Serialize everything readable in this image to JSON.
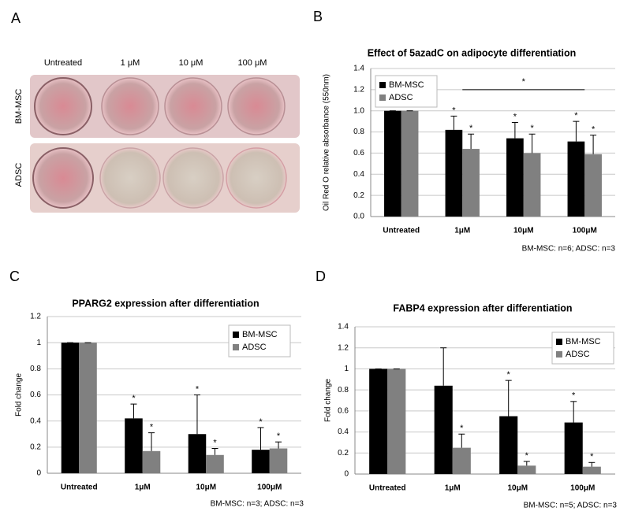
{
  "image_panel": {
    "panel_label": "A",
    "columns": [
      "Untreated",
      "1 μM",
      "10 μM",
      "100 μM"
    ],
    "rows": [
      "BM-MSC",
      "ADSC"
    ]
  },
  "chart_data": [
    {
      "type": "bar",
      "panel_label": "B",
      "title": "Effect of 5azadC on adipocyte differentiation",
      "y_label": "Oil Red O relative absorbance (550nm)",
      "categories": [
        "Untreated",
        "1μM",
        "10μM",
        "100μM"
      ],
      "series": [
        {
          "name": "BM-MSC",
          "color": "#000000",
          "values": [
            1,
            0.82,
            0.74,
            0.71
          ],
          "errors": [
            0,
            0.13,
            0.15,
            0.19
          ],
          "significance": [
            null,
            "*",
            "*",
            "*"
          ]
        },
        {
          "name": "ADSC",
          "color": "#808080",
          "values": [
            1,
            0.64,
            0.6,
            0.59
          ],
          "errors": [
            0,
            0.14,
            0.18,
            0.18
          ],
          "significance": [
            null,
            "*",
            "*",
            "*"
          ]
        }
      ],
      "annotations": [
        {
          "text": "*",
          "from": "1μM",
          "to": "100μM",
          "y": 1.2
        }
      ],
      "ylim": [
        0,
        1.4
      ],
      "yticks": [
        {
          "value": 0,
          "label": "0.0"
        },
        {
          "value": 0.2,
          "label": "0.2"
        },
        {
          "value": 0.4,
          "label": "0.4"
        },
        {
          "value": 0.6,
          "label": "0.6"
        },
        {
          "value": 0.8,
          "label": "0.8"
        },
        {
          "value": 1,
          "label": "1.0"
        },
        {
          "value": 1.2,
          "label": "1.2"
        },
        {
          "value": 1.4,
          "label": "1.4"
        }
      ],
      "grid": true,
      "legend": "upper left",
      "note": "BM-MSC: n=6; ADSC: n=3"
    },
    {
      "type": "bar",
      "panel_label": "C",
      "title": "PPARG2 expression after differentiation",
      "y_label": "Fold change",
      "categories": [
        "Untreated",
        "1μM",
        "10μM",
        "100μM"
      ],
      "series": [
        {
          "name": "BM-MSC",
          "color": "#000000",
          "values": [
            1,
            0.42,
            0.3,
            0.18
          ],
          "errors": [
            0,
            0.11,
            0.3,
            0.17
          ],
          "significance": [
            null,
            "*",
            "*",
            "*"
          ]
        },
        {
          "name": "ADSC",
          "color": "#808080",
          "values": [
            1,
            0.17,
            0.14,
            0.19
          ],
          "errors": [
            0,
            0.14,
            0.05,
            0.05
          ],
          "significance": [
            null,
            "*",
            "*",
            "*"
          ]
        }
      ],
      "ylim": [
        0,
        1.2
      ],
      "yticks": [
        0,
        0.2,
        0.4,
        0.6,
        0.8,
        1,
        1.2
      ],
      "grid": true,
      "legend": "upper right",
      "note": "BM-MSC: n=3; ADSC: n=3"
    },
    {
      "type": "bar",
      "panel_label": "D",
      "title": "FABP4 expression after differentiation",
      "y_label": "Fold change",
      "categories": [
        "Untreated",
        "1μM",
        "10μM",
        "100μM"
      ],
      "series": [
        {
          "name": "BM-MSC",
          "color": "#000000",
          "values": [
            1,
            0.84,
            0.55,
            0.49
          ],
          "errors": [
            0,
            0.36,
            0.34,
            0.2
          ],
          "significance": [
            null,
            null,
            "*",
            "*"
          ]
        },
        {
          "name": "ADSC",
          "color": "#808080",
          "values": [
            1,
            0.25,
            0.08,
            0.07
          ],
          "errors": [
            0,
            0.13,
            0.04,
            0.04
          ],
          "significance": [
            null,
            "*",
            "*",
            "*"
          ]
        }
      ],
      "ylim": [
        0,
        1.4
      ],
      "yticks": [
        0,
        0.2,
        0.4,
        0.6,
        0.8,
        1,
        1.2,
        1.4
      ],
      "grid": true,
      "legend": "upper right",
      "note": "BM-MSC: n=5; ADSC: n=3"
    }
  ]
}
